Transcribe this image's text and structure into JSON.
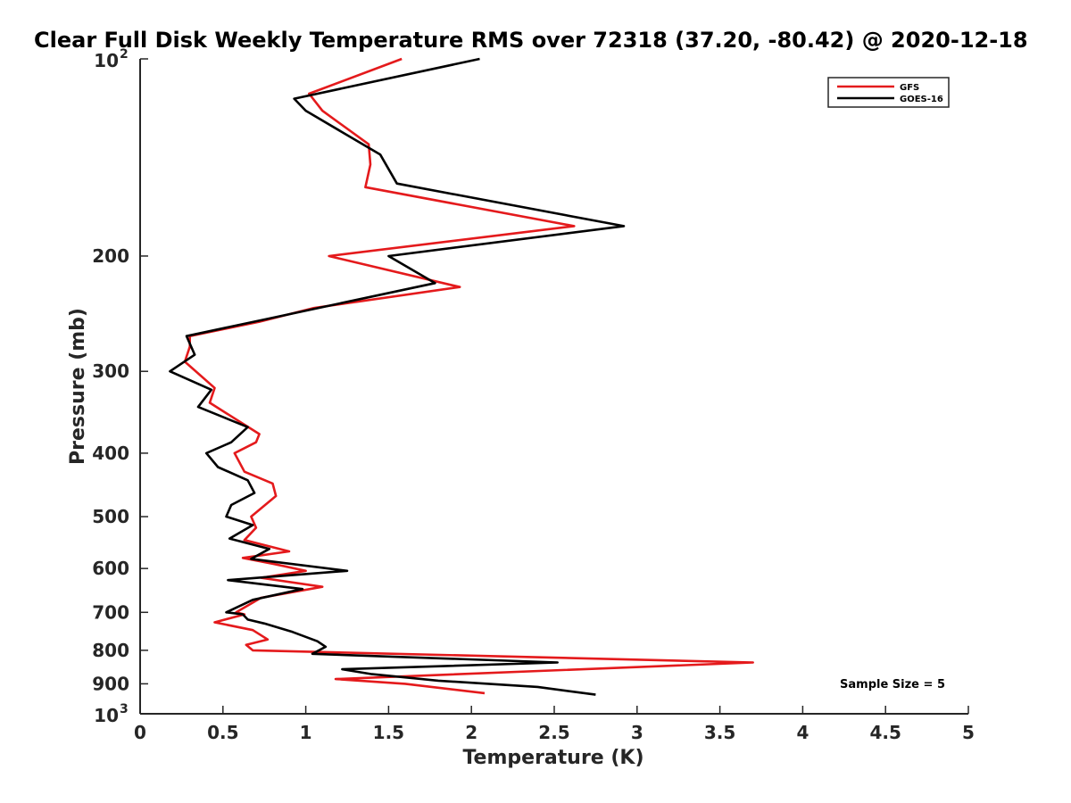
{
  "chart_data": {
    "type": "line",
    "title": "Clear Full Disk Weekly Temperature RMS over 72318 (37.20, -80.42) @ 2020-12-18",
    "xlabel": "Temperature (K)",
    "ylabel": "Pressure (mb)",
    "xlim": [
      0,
      5
    ],
    "ylim": [
      100,
      1000
    ],
    "y_scale": "log",
    "y_reversed": true,
    "x_ticks": [
      "0",
      "0.5",
      "1",
      "1.5",
      "2",
      "2.5",
      "3",
      "3.5",
      "4",
      "4.5",
      "5"
    ],
    "y_ticks": [
      {
        "value": 100,
        "base": "10",
        "exp": "2"
      },
      {
        "value": 200,
        "label": "200"
      },
      {
        "value": 300,
        "label": "300"
      },
      {
        "value": 400,
        "label": "400"
      },
      {
        "value": 500,
        "label": "500"
      },
      {
        "value": 600,
        "label": "600"
      },
      {
        "value": 700,
        "label": "700"
      },
      {
        "value": 800,
        "label": "800"
      },
      {
        "value": 900,
        "label": "900"
      },
      {
        "value": 1000,
        "base": "10",
        "exp": "3"
      }
    ],
    "grid": false,
    "legend_position": "top-right",
    "annotation": "Sample Size = 5",
    "series": [
      {
        "name": "GFS",
        "color": "#e41a1c",
        "points": [
          [
            1.58,
            100
          ],
          [
            1.02,
            113
          ],
          [
            1.1,
            120
          ],
          [
            1.38,
            135
          ],
          [
            1.39,
            145
          ],
          [
            1.36,
            157
          ],
          [
            2.62,
            180
          ],
          [
            1.14,
            200
          ],
          [
            1.93,
            223
          ],
          [
            1.05,
            240
          ],
          [
            0.72,
            252
          ],
          [
            0.3,
            265
          ],
          [
            0.3,
            275
          ],
          [
            0.27,
            290
          ],
          [
            0.45,
            318
          ],
          [
            0.42,
            335
          ],
          [
            0.72,
            374
          ],
          [
            0.7,
            385
          ],
          [
            0.57,
            400
          ],
          [
            0.63,
            427
          ],
          [
            0.8,
            445
          ],
          [
            0.82,
            465
          ],
          [
            0.67,
            500
          ],
          [
            0.7,
            520
          ],
          [
            0.63,
            543
          ],
          [
            0.9,
            565
          ],
          [
            0.62,
            578
          ],
          [
            0.8,
            590
          ],
          [
            1.0,
            605
          ],
          [
            0.73,
            620
          ],
          [
            1.1,
            640
          ],
          [
            0.73,
            665
          ],
          [
            0.58,
            700
          ],
          [
            0.63,
            705
          ],
          [
            0.45,
            725
          ],
          [
            0.68,
            745
          ],
          [
            0.77,
            770
          ],
          [
            0.64,
            785
          ],
          [
            0.68,
            800
          ],
          [
            3.7,
            835
          ],
          [
            1.18,
            885
          ],
          [
            1.6,
            900
          ],
          [
            2.08,
            930
          ]
        ]
      },
      {
        "name": "GOES-16",
        "color": "#000000",
        "points": [
          [
            2.05,
            100
          ],
          [
            0.93,
            115
          ],
          [
            1.0,
            120
          ],
          [
            1.45,
            140
          ],
          [
            1.55,
            155
          ],
          [
            2.92,
            180
          ],
          [
            1.5,
            200
          ],
          [
            1.78,
            220
          ],
          [
            0.75,
            250
          ],
          [
            0.28,
            265
          ],
          [
            0.33,
            283
          ],
          [
            0.18,
            300
          ],
          [
            0.43,
            320
          ],
          [
            0.35,
            340
          ],
          [
            0.65,
            365
          ],
          [
            0.55,
            385
          ],
          [
            0.4,
            400
          ],
          [
            0.47,
            420
          ],
          [
            0.65,
            440
          ],
          [
            0.69,
            460
          ],
          [
            0.55,
            480
          ],
          [
            0.52,
            500
          ],
          [
            0.68,
            515
          ],
          [
            0.54,
            540
          ],
          [
            0.78,
            560
          ],
          [
            0.67,
            580
          ],
          [
            1.25,
            605
          ],
          [
            0.53,
            625
          ],
          [
            0.98,
            645
          ],
          [
            0.68,
            670
          ],
          [
            0.52,
            700
          ],
          [
            0.62,
            705
          ],
          [
            0.65,
            718
          ],
          [
            0.75,
            728
          ],
          [
            0.92,
            750
          ],
          [
            1.07,
            775
          ],
          [
            1.12,
            790
          ],
          [
            1.04,
            810
          ],
          [
            2.52,
            835
          ],
          [
            1.22,
            855
          ],
          [
            1.4,
            870
          ],
          [
            1.8,
            890
          ],
          [
            2.4,
            910
          ],
          [
            2.75,
            935
          ]
        ]
      }
    ]
  }
}
